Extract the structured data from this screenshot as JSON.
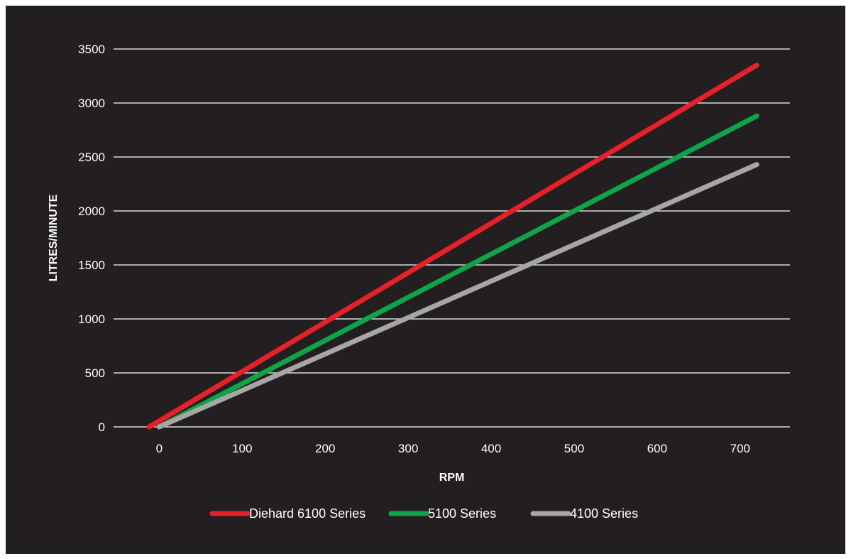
{
  "chart_data": {
    "type": "line",
    "title": "",
    "xlabel": "RPM",
    "ylabel": "LITRES/MINUTE",
    "xlim": [
      -55,
      760
    ],
    "ylim": [
      0,
      3500
    ],
    "xticks": [
      0,
      100,
      200,
      300,
      400,
      500,
      600,
      700
    ],
    "yticks": [
      0,
      500,
      1000,
      1500,
      2000,
      2500,
      3000,
      3500
    ],
    "grid": "horizontal",
    "legend_position": "bottom",
    "series": [
      {
        "name": "Diehard 6100 Series",
        "color": "#e8202a",
        "x": [
          -12,
          720
        ],
        "y": [
          0,
          3350
        ]
      },
      {
        "name": "5100 Series",
        "color": "#10a44a",
        "x": [
          0,
          720
        ],
        "y": [
          0,
          2880
        ]
      },
      {
        "name": "4100 Series",
        "color": "#a7a6a6",
        "x": [
          0,
          720
        ],
        "y": [
          0,
          2430
        ]
      }
    ]
  }
}
